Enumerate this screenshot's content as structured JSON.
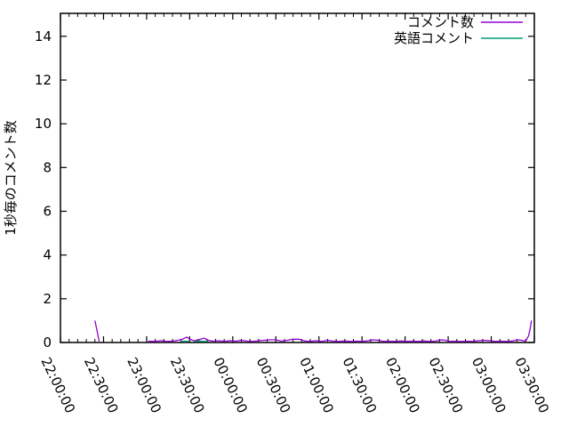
{
  "colors": {
    "background": "#ffffff",
    "axis": "#000000",
    "text": "#000000",
    "series_comments": "#9400d3",
    "series_english": "#009e73"
  },
  "chart_data": {
    "type": "line",
    "title": "",
    "xlabel": "",
    "ylabel": "1秒毎のコメント数",
    "y_ticks": [
      0,
      2,
      4,
      6,
      8,
      10,
      12,
      14
    ],
    "ylim": [
      0,
      15.05
    ],
    "x_tick_labels": [
      "22:00:00",
      "22:30:00",
      "23:00:00",
      "23:30:00",
      "00:00:00",
      "00:30:00",
      "01:00:00",
      "01:30:00",
      "02:00:00",
      "02:30:00",
      "03:00:00",
      "03:30:00"
    ],
    "x_major_step_minutes": 30,
    "x_minor_step_minutes": 6,
    "x_range_minutes": [
      0,
      330
    ],
    "grid": "off",
    "legend_position": "top-right-inside",
    "legend": [
      {
        "label": "コメント数",
        "color": "#9400d3"
      },
      {
        "label": "英語コメント",
        "color": "#009e73"
      }
    ],
    "series": [
      {
        "name": "コメント数",
        "color": "#9400d3",
        "segments": [
          [
            [
              "22:24",
              1.0
            ],
            [
              "22:27",
              0.05
            ]
          ],
          [
            [
              "23:01",
              0.06
            ],
            [
              "23:06",
              0.05
            ],
            [
              "23:10",
              0.08
            ],
            [
              "23:14",
              0.05
            ],
            [
              "23:18",
              0.06
            ],
            [
              "23:22",
              0.1
            ],
            [
              "23:25",
              0.15
            ],
            [
              "23:28",
              0.25
            ],
            [
              "23:30",
              0.15
            ],
            [
              "23:33",
              0.08
            ],
            [
              "23:36",
              0.12
            ],
            [
              "23:40",
              0.2
            ],
            [
              "23:43",
              0.1
            ],
            [
              "23:46",
              0.06
            ],
            [
              "23:50",
              0.08
            ],
            [
              "23:54",
              0.05
            ],
            [
              "23:58",
              0.08
            ],
            [
              "00:02",
              0.06
            ],
            [
              "00:06",
              0.1
            ],
            [
              "00:10",
              0.06
            ],
            [
              "00:14",
              0.05
            ],
            [
              "00:18",
              0.08
            ],
            [
              "00:22",
              0.1
            ],
            [
              "00:26",
              0.12
            ],
            [
              "00:30",
              0.12
            ],
            [
              "00:34",
              0.06
            ],
            [
              "00:38",
              0.1
            ],
            [
              "00:42",
              0.15
            ],
            [
              "00:46",
              0.15
            ],
            [
              "00:50",
              0.07
            ],
            [
              "00:54",
              0.05
            ],
            [
              "00:58",
              0.08
            ],
            [
              "01:02",
              0.05
            ],
            [
              "01:06",
              0.1
            ],
            [
              "01:10",
              0.06
            ],
            [
              "01:14",
              0.05
            ],
            [
              "01:18",
              0.07
            ],
            [
              "01:22",
              0.05
            ],
            [
              "01:26",
              0.06
            ],
            [
              "01:30",
              0.05
            ],
            [
              "01:34",
              0.08
            ],
            [
              "01:38",
              0.12
            ],
            [
              "01:41",
              0.1
            ],
            [
              "01:45",
              0.05
            ],
            [
              "01:49",
              0.06
            ],
            [
              "01:53",
              0.05
            ],
            [
              "01:57",
              0.07
            ],
            [
              "02:01",
              0.05
            ],
            [
              "02:05",
              0.06
            ],
            [
              "02:09",
              0.05
            ],
            [
              "02:13",
              0.07
            ],
            [
              "02:17",
              0.05
            ],
            [
              "02:21",
              0.06
            ],
            [
              "02:25",
              0.12
            ],
            [
              "02:28",
              0.1
            ],
            [
              "02:31",
              0.05
            ],
            [
              "02:35",
              0.06
            ],
            [
              "02:39",
              0.05
            ],
            [
              "02:43",
              0.06
            ],
            [
              "02:47",
              0.05
            ],
            [
              "02:51",
              0.08
            ],
            [
              "02:55",
              0.1
            ],
            [
              "02:59",
              0.08
            ],
            [
              "03:03",
              0.05
            ],
            [
              "03:07",
              0.06
            ],
            [
              "03:11",
              0.05
            ],
            [
              "03:15",
              0.07
            ],
            [
              "03:18",
              0.12
            ],
            [
              "03:21",
              0.1
            ],
            [
              "03:24",
              0.06
            ],
            [
              "03:26",
              0.3
            ],
            [
              "03:27",
              0.6
            ],
            [
              "03:28",
              1.0
            ]
          ]
        ]
      },
      {
        "name": "英語コメント",
        "color": "#009e73",
        "segments": [
          [
            [
              "23:24",
              0.05
            ],
            [
              "23:27",
              0.06
            ],
            [
              "23:30",
              0.05
            ]
          ],
          [
            [
              "23:33",
              0.05
            ],
            [
              "23:36",
              0.07
            ],
            [
              "23:40",
              0.05
            ],
            [
              "23:43",
              0.05
            ]
          ]
        ]
      }
    ]
  }
}
